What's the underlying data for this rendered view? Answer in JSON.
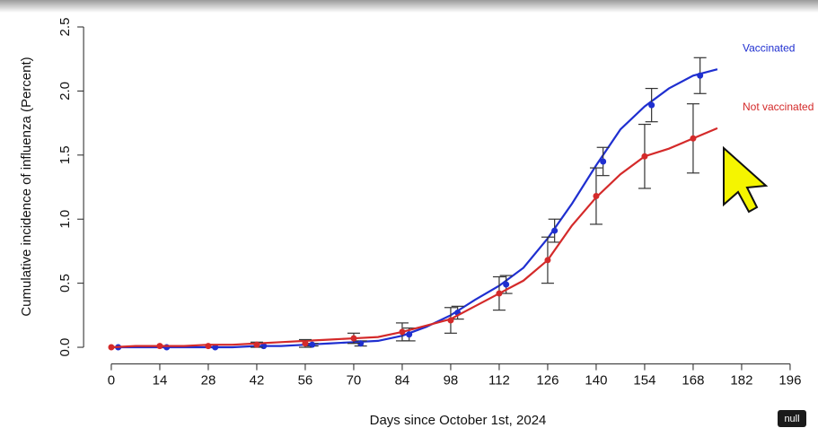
{
  "chart_data": {
    "type": "step",
    "x_label": "Days since October 1st, 2024",
    "y_label": "Cumulative incidence of influenza (Percent)",
    "xlim": [
      -8,
      204
    ],
    "ylim": [
      -0.13,
      2.65
    ],
    "xticks": [
      0,
      14,
      28,
      42,
      56,
      70,
      84,
      98,
      112,
      126,
      140,
      154,
      168,
      182,
      196
    ],
    "yticks": [
      {
        "value": 0,
        "label": "0.0"
      },
      {
        "value": 0.5,
        "label": "0.5"
      },
      {
        "value": 1,
        "label": "1.0"
      },
      {
        "value": 1.5,
        "label": "1.5"
      },
      {
        "value": 2,
        "label": "2.0"
      },
      {
        "value": 2.5,
        "label": "2.5"
      }
    ],
    "series": [
      {
        "name": "Vaccinated",
        "color": "#1f2fd0",
        "x": [
          0,
          7,
          14,
          21,
          28,
          35,
          42,
          49,
          56,
          63,
          70,
          77,
          84,
          91,
          98,
          105,
          112,
          119,
          126,
          133,
          140,
          147,
          154,
          161,
          168,
          175
        ],
        "values": [
          0,
          0,
          0,
          0,
          0,
          0,
          0.01,
          0.01,
          0.02,
          0.03,
          0.04,
          0.05,
          0.09,
          0.16,
          0.25,
          0.37,
          0.48,
          0.62,
          0.85,
          1.12,
          1.42,
          1.7,
          1.88,
          2.02,
          2.12,
          2.17
        ],
        "points": {
          "x": [
            2,
            16,
            30,
            44,
            58,
            72,
            86,
            100,
            114,
            128,
            142,
            156,
            170
          ],
          "values": [
            0,
            0,
            0,
            0.01,
            0.02,
            0.03,
            0.1,
            0.27,
            0.49,
            0.91,
            1.45,
            1.89,
            2.12
          ],
          "errors": [
            0,
            0,
            0,
            0,
            0.01,
            0.02,
            0.05,
            0.05,
            0.07,
            0.09,
            0.11,
            0.13,
            0.14
          ]
        }
      },
      {
        "name": "Not vaccinated",
        "color": "#d42a2a",
        "x": [
          0,
          7,
          14,
          21,
          28,
          35,
          42,
          49,
          56,
          63,
          70,
          77,
          84,
          91,
          98,
          105,
          112,
          119,
          126,
          133,
          140,
          147,
          154,
          161,
          168,
          175
        ],
        "values": [
          0,
          0.01,
          0.01,
          0.01,
          0.02,
          0.02,
          0.03,
          0.04,
          0.05,
          0.06,
          0.07,
          0.08,
          0.12,
          0.17,
          0.22,
          0.32,
          0.42,
          0.52,
          0.68,
          0.95,
          1.17,
          1.35,
          1.49,
          1.55,
          1.63,
          1.71
        ],
        "points": {
          "x": [
            0,
            14,
            28,
            42,
            56,
            70,
            84,
            98,
            112,
            126,
            140,
            154,
            168
          ],
          "values": [
            0,
            0.01,
            0.01,
            0.02,
            0.03,
            0.07,
            0.12,
            0.21,
            0.42,
            0.68,
            1.18,
            1.49,
            1.63
          ],
          "errors": [
            0,
            0,
            0,
            0.02,
            0.03,
            0.04,
            0.07,
            0.1,
            0.13,
            0.18,
            0.22,
            0.25,
            0.27
          ]
        }
      }
    ]
  },
  "badge": "null"
}
